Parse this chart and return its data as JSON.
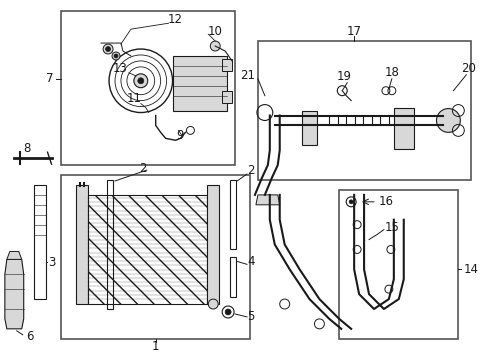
{
  "bg_color": "#ffffff",
  "box_color": "#555555",
  "line_color": "#1a1a1a",
  "gray_fill": "#d8d8d8",
  "light_gray": "#eeeeee"
}
